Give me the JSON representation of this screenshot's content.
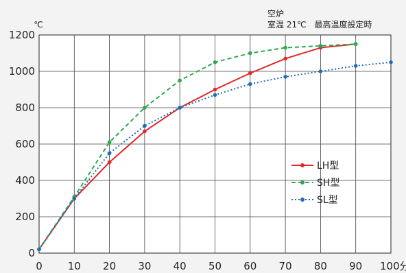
{
  "chart_data": {
    "type": "line",
    "ylabel": "℃",
    "xunit": "分",
    "annotation": {
      "line1": "空炉",
      "line2": "室温 21℃　最高温度設定時"
    },
    "xlim": [
      0,
      100
    ],
    "ylim": [
      0,
      1200
    ],
    "xticks": [
      0,
      10,
      20,
      30,
      40,
      50,
      60,
      70,
      80,
      90,
      100
    ],
    "yticks": [
      0,
      200,
      400,
      600,
      800,
      1000,
      1200
    ],
    "grid": true,
    "legend_position": "right-middle",
    "series": [
      {
        "name": "LH型",
        "color": "#e2282a",
        "style": "solid",
        "x": [
          0,
          10,
          20,
          30,
          40,
          50,
          60,
          70,
          80,
          90
        ],
        "y": [
          21,
          300,
          500,
          670,
          800,
          900,
          990,
          1070,
          1130,
          1150
        ]
      },
      {
        "name": "SH型",
        "color": "#2ea84f",
        "style": "dashed",
        "x": [
          0,
          10,
          20,
          30,
          40,
          50,
          60,
          70,
          80,
          90
        ],
        "y": [
          21,
          310,
          610,
          800,
          950,
          1050,
          1100,
          1130,
          1140,
          1150
        ]
      },
      {
        "name": "SL型",
        "color": "#1f6db5",
        "style": "dotted",
        "x": [
          0,
          10,
          20,
          30,
          40,
          50,
          60,
          70,
          80,
          90,
          100
        ],
        "y": [
          21,
          300,
          550,
          700,
          800,
          870,
          930,
          970,
          1000,
          1030,
          1050
        ]
      }
    ]
  }
}
